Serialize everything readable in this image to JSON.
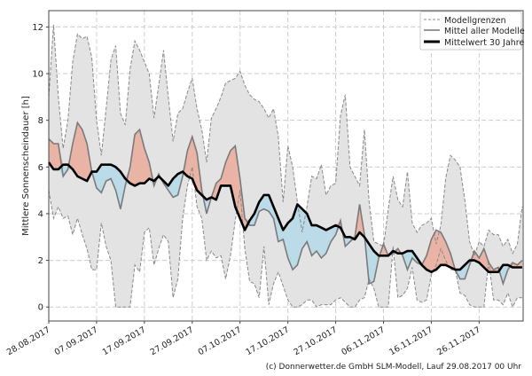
{
  "chart_data": {
    "type": "line",
    "title": "",
    "xlabel": "",
    "ylabel": "Mittlere Sonnenscheindauer [h]",
    "ylim": [
      -0.6,
      12.7
    ],
    "xlim_days": [
      0,
      99
    ],
    "grid": true,
    "yticks": [
      0,
      2,
      4,
      6,
      8,
      10,
      12
    ],
    "xtick_labels": [
      "28.08.2017",
      "07.09.2017",
      "17.09.2017",
      "27.09.2017",
      "07.10.2017",
      "17.10.2017",
      "27.10.2017",
      "06.11.2017",
      "16.11.2017",
      "26.11.2017"
    ],
    "xtick_days": [
      0,
      10,
      20,
      30,
      40,
      50,
      60,
      70,
      80,
      90
    ],
    "legend_position": "top-right",
    "legend": [
      "Modellgrenzen",
      "Mittel aller Modelle",
      "Mittelwert 30 Jahre"
    ],
    "colors": {
      "band": "#e3e3e3",
      "band_line": "#888888",
      "mean_line": "#7a7a7a",
      "climate_line": "#000000",
      "above": "#e9b4a6",
      "below": "#bcdbe8"
    },
    "series": [
      {
        "name": "Modellgrenzen oben",
        "values": [
          9,
          12.1,
          9,
          6.8,
          8,
          10.5,
          11.7,
          11.5,
          11.6,
          10.7,
          8,
          6.5,
          8.5,
          10.6,
          11.2,
          8.3,
          7.8,
          10.2,
          11.4,
          11,
          10.5,
          10,
          8.1,
          9.5,
          11,
          9,
          7.1,
          8.3,
          8.5,
          9.2,
          9.8,
          8.5,
          7.6,
          6.2,
          8.1,
          8.5,
          9,
          9.6,
          9.7,
          9.8,
          10.1,
          9.5,
          9.1,
          8.9,
          8.8,
          8.5,
          8.1,
          8.5,
          7.3,
          4.5,
          6.9,
          6,
          4.5,
          3.2,
          4.3,
          5.6,
          5.5,
          6.1,
          4.8,
          5.2,
          5.3,
          8.2,
          9.1,
          6,
          5.6,
          5.2,
          7.6,
          4.5,
          2.8,
          2.7,
          2.6,
          4.2,
          5.6,
          4.6,
          4.3,
          5.8,
          3.6,
          3.2,
          3.5,
          3.6,
          3.8,
          2.7,
          3.5,
          5.5,
          6.5,
          6.3,
          6.0,
          4.6,
          2.8,
          2.2,
          2.8,
          2.6,
          3.3,
          3.1,
          3.1,
          2.6,
          2.9,
          2.3,
          2.7,
          4.3
        ]
      },
      {
        "name": "Modellgrenzen unten",
        "values": [
          5,
          3.8,
          4.3,
          3.8,
          3.9,
          3.1,
          3.8,
          3.1,
          2.5,
          1.6,
          1.6,
          3.6,
          2.6,
          2,
          0,
          0,
          0,
          0,
          1.8,
          1.5,
          3.2,
          3.4,
          1.8,
          2.5,
          3.1,
          2.8,
          0.4,
          1.2,
          3.8,
          5.2,
          6,
          4.3,
          3.8,
          2,
          2.4,
          2.1,
          2.2,
          1.2,
          2.2,
          3.7,
          5,
          2.5,
          1.1,
          1,
          0.4,
          2.6,
          0.1,
          1,
          1.5,
          0.9,
          0.3,
          0,
          0,
          0.1,
          0.3,
          0.3,
          0,
          0.1,
          0.1,
          0.1,
          0.3,
          0.4,
          0.2,
          0,
          0,
          0.3,
          0.4,
          1.2,
          0.8,
          0,
          0,
          0,
          2.6,
          0.4,
          0.5,
          0.8,
          1.7,
          0.3,
          0.2,
          0.3,
          1.4,
          1.8,
          2.5,
          2,
          1.6,
          1.6,
          0.6,
          0.5,
          0.1,
          0,
          0,
          0,
          2,
          0.3,
          0.3,
          0.1,
          0.6,
          0,
          0.4,
          0.4
        ]
      },
      {
        "name": "Mittel aller Modelle",
        "values": [
          7.2,
          7.0,
          7.0,
          5.6,
          5.9,
          7.0,
          7.9,
          7.6,
          7.0,
          5.8,
          5.1,
          4.9,
          5.4,
          5.5,
          5.0,
          4.2,
          5.2,
          6.0,
          7.4,
          7.6,
          6.8,
          6.2,
          5.2,
          5.7,
          5.3,
          5.0,
          4.7,
          4.8,
          5.6,
          6.7,
          7.3,
          6.6,
          5.0,
          4.0,
          4.7,
          5.3,
          5.5,
          6.2,
          6.7,
          6.9,
          5.5,
          3.8,
          3.5,
          3.5,
          4.1,
          4.2,
          4.1,
          3.8,
          2.8,
          2.9,
          2.1,
          1.6,
          1.8,
          2.5,
          2.8,
          2.2,
          2.4,
          2.1,
          2.3,
          2.8,
          3.1,
          3.7,
          2.6,
          2.8,
          3.0,
          4.4,
          3.1,
          1.0,
          1.1,
          2.1,
          2.7,
          2.2,
          2.3,
          2.5,
          2.2,
          1.6,
          2.1,
          1.9,
          1.8,
          2.2,
          2.9,
          3.3,
          3.2,
          2.8,
          2.3,
          1.6,
          1.2,
          1.2,
          1.8,
          2.4,
          2.1,
          2.5,
          1.9,
          1.6,
          1.7,
          1.0,
          1.6,
          1.9,
          1.8,
          2.0
        ]
      },
      {
        "name": "Mittelwert 30 Jahre",
        "values": [
          6.2,
          5.9,
          5.9,
          6.1,
          6.1,
          5.9,
          5.6,
          5.5,
          5.4,
          5.8,
          5.8,
          6.1,
          6.1,
          6.1,
          6.0,
          5.8,
          5.5,
          5.3,
          5.2,
          5.3,
          5.3,
          5.5,
          5.4,
          5.6,
          5.4,
          5.2,
          5.5,
          5.7,
          5.8,
          5.6,
          5.5,
          5.0,
          4.8,
          4.6,
          4.7,
          4.6,
          5.2,
          5.2,
          5.2,
          4.3,
          3.8,
          3.3,
          3.7,
          4.0,
          4.5,
          4.8,
          4.8,
          4.3,
          3.8,
          3.3,
          3.6,
          3.8,
          4.4,
          4.2,
          4.0,
          3.5,
          3.5,
          3.4,
          3.3,
          3.4,
          3.5,
          3.4,
          3.0,
          3.0,
          2.9,
          3.2,
          3.0,
          2.7,
          2.4,
          2.2,
          2.2,
          2.2,
          2.4,
          2.3,
          2.3,
          2.4,
          2.4,
          2.1,
          1.8,
          1.6,
          1.5,
          1.6,
          1.8,
          1.8,
          1.7,
          1.6,
          1.6,
          1.8,
          2.0,
          2.0,
          1.9,
          1.7,
          1.5,
          1.5,
          1.5,
          1.8,
          1.8,
          1.7,
          1.7,
          1.7
        ]
      }
    ]
  },
  "footer": "(c) Donnerwetter.de GmbH SLM-Modell, Lauf 29.08.2017 00 Uhr"
}
